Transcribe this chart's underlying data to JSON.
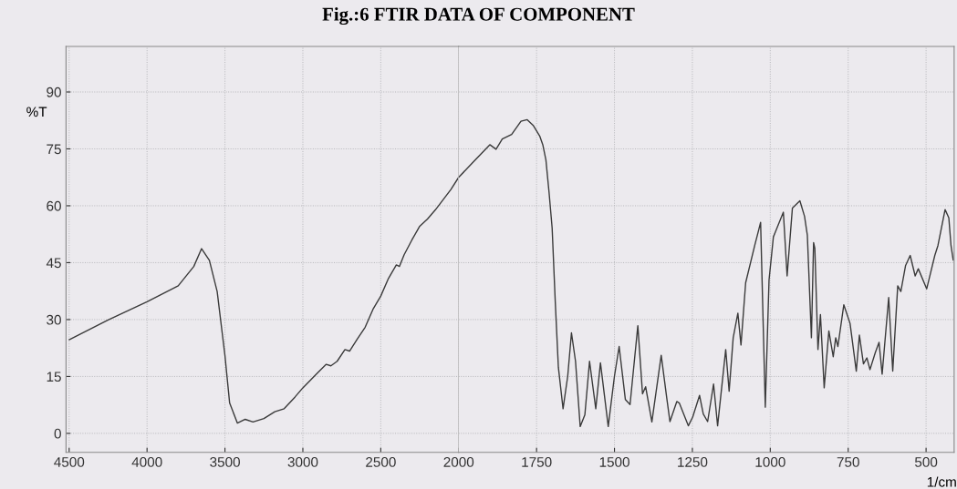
{
  "chart_data": [
    {
      "type": "line",
      "title": "Fig.:6 FTIR DATA OF COMPONENT",
      "ylabel": "%T",
      "x": [
        4500,
        4250,
        4000,
        3800,
        3700,
        3650,
        3600,
        3550,
        3500,
        3470,
        3420,
        3370,
        3320,
        3250,
        3180,
        3120,
        3050,
        3000,
        2950,
        2900,
        2850,
        2820,
        2780,
        2730,
        2700,
        2650,
        2600,
        2550,
        2500,
        2450,
        2400,
        2380,
        2350,
        2300,
        2250,
        2200,
        2150,
        2100,
        2050,
        2000
      ],
      "series": [
        {
          "color": "#3a3a3a",
          "values": [
            24.7,
            29.9,
            34.7,
            38.9,
            44,
            48.7,
            45.6,
            37.4,
            20.5,
            8,
            2.7,
            3.7,
            3,
            3.9,
            5.7,
            6.5,
            9.6,
            12,
            14.1,
            16.2,
            18.2,
            17.8,
            19,
            22.1,
            21.7,
            24.9,
            28,
            32.7,
            36.2,
            40.9,
            44.4,
            44,
            47.1,
            51,
            54.6,
            56.5,
            58.9,
            61.6,
            64.3,
            67.5
          ]
        }
      ],
      "xlim": [
        4520,
        2000
      ],
      "xticks": [
        4500,
        4000,
        3500,
        3000,
        2500,
        2000
      ],
      "ylim": [
        -5,
        102
      ],
      "yticks": [
        0,
        15,
        30,
        45,
        60,
        75,
        90
      ],
      "grid": true,
      "marker": "none",
      "line_style": "solid"
    },
    {
      "type": "line",
      "xlabel": "1/cm",
      "x": [
        2000,
        1950,
        1900,
        1880,
        1860,
        1830,
        1800,
        1780,
        1760,
        1740,
        1730,
        1720,
        1710,
        1700,
        1690,
        1680,
        1665,
        1650,
        1638,
        1625,
        1610,
        1595,
        1580,
        1560,
        1545,
        1520,
        1500,
        1485,
        1465,
        1450,
        1425,
        1410,
        1400,
        1380,
        1350,
        1332,
        1322,
        1300,
        1292,
        1263,
        1249,
        1227,
        1215,
        1201,
        1182,
        1169,
        1143,
        1132,
        1119,
        1104,
        1094,
        1079,
        1050,
        1031,
        1016,
        1004,
        990,
        958,
        946,
        929,
        905,
        890,
        881,
        868,
        861,
        857,
        847,
        839,
        827,
        812,
        798,
        790,
        783,
        764,
        744,
        724,
        714,
        701,
        690,
        680,
        663,
        651,
        641,
        620,
        607,
        591,
        581,
        566,
        551,
        535,
        525,
        498,
        472,
        462,
        439,
        427,
        420,
        413
      ],
      "series": [
        {
          "color": "#3a3a3a",
          "values": [
            67.5,
            71.8,
            76.1,
            74.9,
            77.6,
            78.8,
            82.3,
            82.7,
            81.1,
            78.4,
            76.1,
            72.1,
            63.6,
            54.1,
            34.7,
            17.4,
            6.5,
            15.1,
            26.5,
            19,
            1.8,
            4.9,
            19,
            6.5,
            18.6,
            1.8,
            15.1,
            22.9,
            8.9,
            7.6,
            28.4,
            10.4,
            12.3,
            3,
            20.6,
            9.2,
            3.1,
            8.4,
            8,
            2,
            4.3,
            10,
            5.1,
            3.1,
            13,
            2,
            22.1,
            11.1,
            25.2,
            31.7,
            23.3,
            39.7,
            49.5,
            55.6,
            6.9,
            40.4,
            51.8,
            58.3,
            41.5,
            59.4,
            61.3,
            57.2,
            52.2,
            25.2,
            50.3,
            48.8,
            22.1,
            31.3,
            12,
            27,
            20.2,
            25.2,
            22.9,
            33.9,
            29,
            16.4,
            25.9,
            18.3,
            19.9,
            16.8,
            21.3,
            24,
            15.6,
            35.8,
            16.4,
            38.9,
            37.4,
            44.2,
            46.9,
            41.5,
            43.4,
            38.1,
            46.9,
            49.5,
            59,
            56.8,
            49.5,
            45.7
          ]
        }
      ],
      "xlim": [
        2000,
        410
      ],
      "xticks": [
        1750,
        1500,
        1250,
        1000,
        750,
        500
      ],
      "ylim": [
        -5,
        102
      ],
      "grid": true,
      "marker": "none",
      "line_style": "solid",
      "tick_labels": "x"
    }
  ]
}
